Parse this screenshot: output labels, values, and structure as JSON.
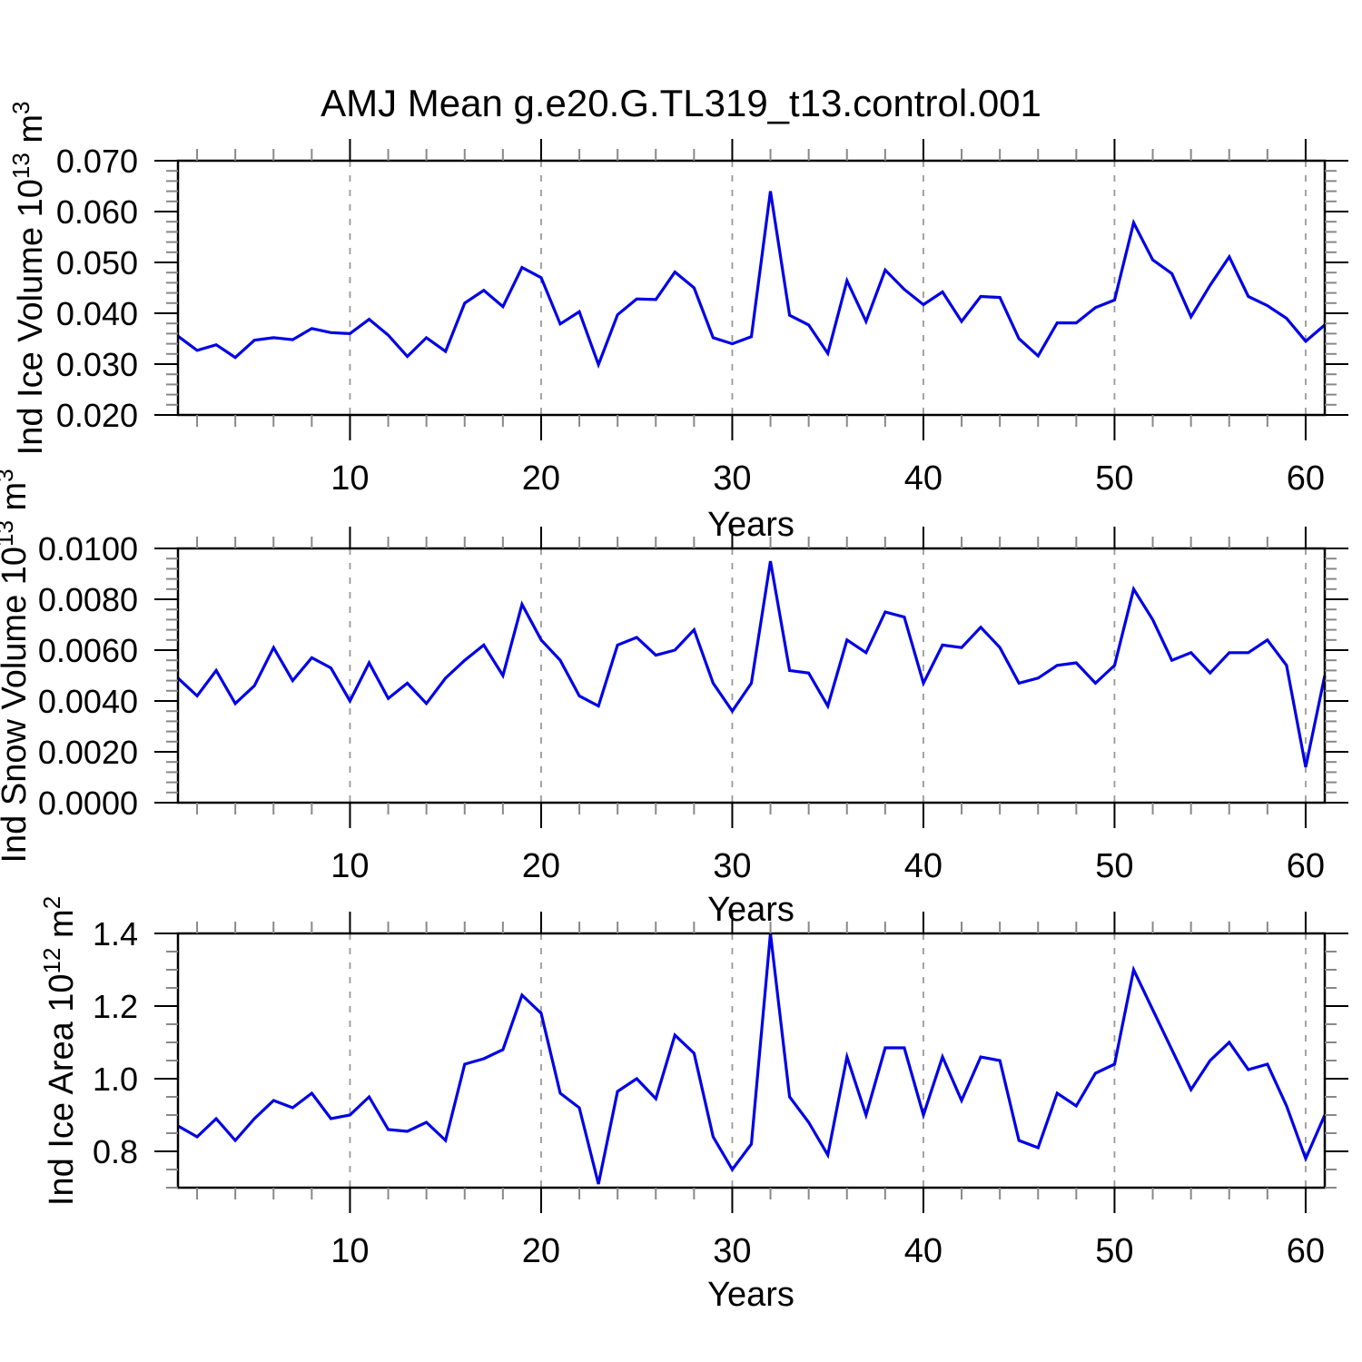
{
  "title": "AMJ Mean g.e20.G.TL319_t13.control.001",
  "style": {
    "line_color": "#0000e6",
    "grid_color": "#999999",
    "axis_color": "#000000",
    "minor_tick_color": "#888888",
    "background": "#ffffff"
  },
  "chart_data": [
    {
      "type": "line",
      "series_name": "Ind Ice Volume",
      "ylabel": "Ind Ice Volume 10^13 m^3",
      "ylabel_parts": {
        "main": "Ind Ice Volume 10",
        "sup1": "13",
        "mid": " m",
        "sup2": "3"
      },
      "xlabel": "Years",
      "x_range": [
        1,
        61
      ],
      "x_step": 1,
      "ylim": [
        0.02,
        0.07
      ],
      "yticks": [
        0.02,
        0.03,
        0.04,
        0.05,
        0.06,
        0.07
      ],
      "ytick_labels": [
        "0.020",
        "0.030",
        "0.040",
        "0.050",
        "0.060",
        "0.070"
      ],
      "y_minor_step": 0.002,
      "xticks": [
        10,
        20,
        30,
        40,
        50,
        60
      ],
      "xtick_labels": [
        "10",
        "20",
        "30",
        "40",
        "50",
        "60"
      ],
      "x_minor_step": 2,
      "grid_x": [
        10,
        20,
        30,
        40,
        50,
        60
      ],
      "values": [
        0.0355,
        0.0327,
        0.0338,
        0.0313,
        0.0347,
        0.0352,
        0.0348,
        0.037,
        0.0362,
        0.036,
        0.0388,
        0.0357,
        0.0315,
        0.0352,
        0.0325,
        0.042,
        0.0445,
        0.0413,
        0.049,
        0.047,
        0.0379,
        0.0403,
        0.0299,
        0.0397,
        0.0428,
        0.0427,
        0.0481,
        0.045,
        0.0352,
        0.034,
        0.0354,
        0.064,
        0.0396,
        0.0377,
        0.0321,
        0.0464,
        0.0384,
        0.0485,
        0.0447,
        0.0417,
        0.0442,
        0.0384,
        0.0433,
        0.0431,
        0.035,
        0.0316,
        0.0381,
        0.0381,
        0.0411,
        0.0426,
        0.0578,
        0.0505,
        0.0478,
        0.0393,
        0.0455,
        0.0511,
        0.0433,
        0.0415,
        0.039,
        0.0345,
        0.0377
      ]
    },
    {
      "type": "line",
      "series_name": "Ind Snow Volume",
      "ylabel": "Ind Snow Volume 10^13 m^3",
      "ylabel_parts": {
        "main": "Ind Snow Volume 10",
        "sup1": "13",
        "mid": " m",
        "sup2": "3"
      },
      "xlabel": "Years",
      "x_range": [
        1,
        61
      ],
      "x_step": 1,
      "ylim": [
        0.0,
        0.01
      ],
      "yticks": [
        0.0,
        0.002,
        0.004,
        0.006,
        0.008,
        0.01
      ],
      "ytick_labels": [
        "0.0000",
        "0.0020",
        "0.0040",
        "0.0060",
        "0.0080",
        "0.0100"
      ],
      "y_minor_step": 0.0004,
      "xticks": [
        10,
        20,
        30,
        40,
        50,
        60
      ],
      "xtick_labels": [
        "10",
        "20",
        "30",
        "40",
        "50",
        "60"
      ],
      "x_minor_step": 2,
      "grid_x": [
        10,
        20,
        30,
        40,
        50,
        60
      ],
      "values": [
        0.0049,
        0.0042,
        0.0052,
        0.0039,
        0.0046,
        0.0061,
        0.0048,
        0.0057,
        0.0053,
        0.004,
        0.0055,
        0.0041,
        0.0047,
        0.0039,
        0.0049,
        0.0056,
        0.0062,
        0.005,
        0.0078,
        0.0064,
        0.0056,
        0.0042,
        0.0038,
        0.0062,
        0.0065,
        0.0058,
        0.006,
        0.0068,
        0.0047,
        0.0036,
        0.0047,
        0.0095,
        0.0052,
        0.0051,
        0.0038,
        0.0064,
        0.0059,
        0.0075,
        0.0073,
        0.0047,
        0.0062,
        0.0061,
        0.0069,
        0.0061,
        0.0047,
        0.0049,
        0.0054,
        0.0055,
        0.0047,
        0.0054,
        0.0084,
        0.0072,
        0.0056,
        0.0059,
        0.0051,
        0.0059,
        0.0059,
        0.0064,
        0.0054,
        0.0014,
        0.005
      ]
    },
    {
      "type": "line",
      "series_name": "Ind Ice Area",
      "ylabel": "Ind Ice Area 10^12 m^2",
      "ylabel_parts": {
        "main": "Ind Ice Area 10",
        "sup1": "12",
        "mid": " m",
        "sup2": "2"
      },
      "xlabel": "Years",
      "x_range": [
        1,
        61
      ],
      "x_step": 1,
      "ylim": [
        0.7,
        1.4
      ],
      "yticks": [
        0.8,
        1.0,
        1.2,
        1.4
      ],
      "ytick_labels": [
        "0.8",
        "1.0",
        "1.2",
        "1.4"
      ],
      "y_minor_step": 0.05,
      "xticks": [
        10,
        20,
        30,
        40,
        50,
        60
      ],
      "xtick_labels": [
        "10",
        "20",
        "30",
        "40",
        "50",
        "60"
      ],
      "x_minor_step": 2,
      "grid_x": [
        10,
        20,
        30,
        40,
        50,
        60
      ],
      "values": [
        0.87,
        0.84,
        0.89,
        0.83,
        0.89,
        0.94,
        0.92,
        0.96,
        0.89,
        0.9,
        0.95,
        0.86,
        0.855,
        0.88,
        0.83,
        1.04,
        1.055,
        1.08,
        1.23,
        1.18,
        0.96,
        0.92,
        0.71,
        0.965,
        1.0,
        0.945,
        1.12,
        1.07,
        0.84,
        0.75,
        0.82,
        1.4,
        0.95,
        0.88,
        0.79,
        1.06,
        0.9,
        1.085,
        1.085,
        0.9,
        1.06,
        0.94,
        1.06,
        1.05,
        0.83,
        0.81,
        0.96,
        0.925,
        1.015,
        1.04,
        1.3,
        1.19,
        1.08,
        0.97,
        1.05,
        1.1,
        1.025,
        1.04,
        0.925,
        0.78,
        0.9
      ]
    }
  ]
}
